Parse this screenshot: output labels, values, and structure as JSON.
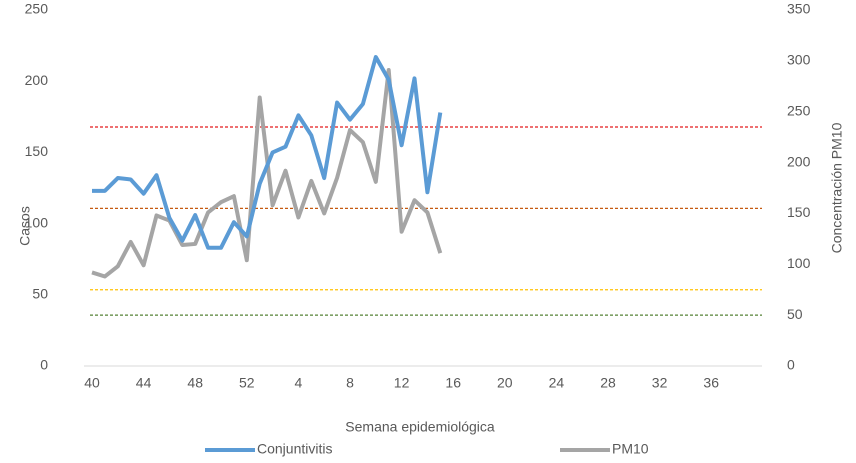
{
  "chart_data": {
    "type": "line",
    "x_label": "Semana epidemiológica",
    "y_label": "Casos",
    "y2_label": "Concentración PM10",
    "categories": [
      "40",
      null,
      null,
      null,
      "44",
      null,
      null,
      null,
      "48",
      null,
      null,
      null,
      "52",
      null,
      null,
      null,
      "4",
      null,
      null,
      null,
      "8",
      null,
      null,
      null,
      "12",
      null,
      null,
      null,
      "16",
      null,
      null,
      null,
      "20",
      null,
      null,
      null,
      "24",
      null,
      null,
      null,
      "28",
      null,
      null,
      null,
      "32",
      null,
      null,
      null,
      "36",
      null,
      null,
      null
    ],
    "series": [
      {
        "name": "Conjuntivitis",
        "color": "#5b9bd5",
        "axis": "y",
        "values": [
          123,
          123,
          132,
          131,
          121,
          134,
          104,
          88,
          106,
          83,
          83,
          101,
          91,
          128,
          150,
          154,
          176,
          162,
          132,
          185,
          173,
          184,
          217,
          201,
          155,
          202,
          122,
          178,
          null,
          null,
          null,
          null,
          null,
          null,
          null,
          null,
          null,
          null,
          null,
          null,
          null,
          null,
          null,
          null,
          null,
          null,
          null,
          null,
          null,
          null,
          null,
          null
        ]
      },
      {
        "name": "PM10",
        "color": "#a5a5a5",
        "axis": "y2",
        "values": [
          92,
          88,
          98,
          122,
          99,
          148,
          143,
          119,
          120,
          151,
          161,
          167,
          104,
          264,
          158,
          192,
          146,
          182,
          150,
          185,
          232,
          220,
          181,
          291,
          132,
          163,
          151,
          111,
          null,
          null,
          null,
          null,
          null,
          null,
          null,
          null,
          null,
          null,
          null,
          null,
          null,
          null,
          null,
          null,
          null,
          null,
          null,
          null,
          null,
          null,
          null,
          null
        ]
      }
    ],
    "reference_lines": [
      {
        "value": 235,
        "color": "#e31a1c",
        "axis": "y2"
      },
      {
        "value": 155,
        "color": "#c55a11",
        "axis": "y2"
      },
      {
        "value": 75,
        "color": "#ffc000",
        "axis": "y2"
      },
      {
        "value": 50,
        "color": "#548235",
        "axis": "y2"
      }
    ],
    "ylim": [
      0,
      250
    ],
    "yticks": [
      0,
      50,
      100,
      150,
      200,
      250
    ],
    "y2lim": [
      0,
      350
    ],
    "y2ticks": [
      0,
      50,
      100,
      150,
      200,
      250,
      300,
      350
    ],
    "legend": "bottom"
  }
}
